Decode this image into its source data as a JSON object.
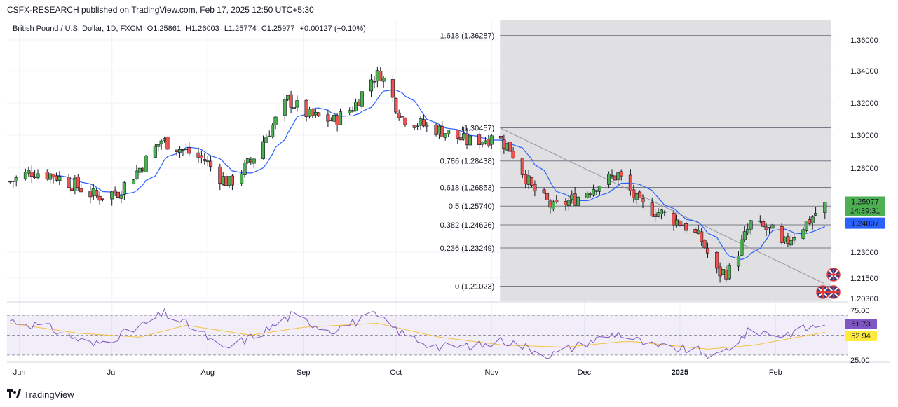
{
  "header": {
    "publisher": "CSFX-RESEARCH published on TradingView.com, Feb 17, 2025 12:50 UTC+5:30"
  },
  "legend": {
    "symbol": "British Pound / U.S. Dollar, 1D, FXCM",
    "open": "O1.25861",
    "high": "H1.26003",
    "low": "L1.25774",
    "close": "C1.25977",
    "change": "+0.00127 (+0.10%)"
  },
  "footer": {
    "brand": "TradingView",
    "logo": "tradingview-logo-icon"
  },
  "colors": {
    "up": "#4caf50",
    "down": "#ef5350",
    "ma": "#2962ff",
    "rsi": "#7e57c2",
    "rsi_ma": "#f5c242",
    "price_badge": "#4caf50",
    "ma_badge": "#2962ff",
    "rsi_badge": "#7e57c2",
    "rsi_ma_badge": "#ffeb3b",
    "shade": "#e0e0e3"
  },
  "chart_data": [
    {
      "type": "candlestick",
      "symbol": "GBPUSD",
      "timeframe": "1D",
      "y_ticks": [
        1.36,
        1.34,
        1.32,
        1.3,
        1.28,
        1.23,
        1.215,
        1.203
      ],
      "y_tick_labels": [
        "1.36000",
        "1.34000",
        "1.32000",
        "1.30000",
        "1.28000",
        "1.23000",
        "1.21500",
        "1.20300"
      ],
      "ylim": [
        1.201,
        1.372
      ],
      "x_ticks": [
        "Jun",
        "Jul",
        "Aug",
        "Sep",
        "Oct",
        "Nov",
        "Dec",
        "2025",
        "Feb"
      ],
      "x_tick_dates": [
        "2024-06-01",
        "2024-07-01",
        "2024-08-01",
        "2024-09-01",
        "2024-10-01",
        "2024-11-01",
        "2024-12-01",
        "2025-01-01",
        "2025-02-01"
      ],
      "price_labels": [
        {
          "value": 1.25977,
          "text": "1.25977",
          "countdown": "14:39:31",
          "color": "#4caf50"
        },
        {
          "value": 1.24807,
          "text": "1.24807",
          "color": "#2962ff"
        }
      ],
      "fibonacci": {
        "start_date": "2024-11-01",
        "end_date": "2025-02-14",
        "levels": [
          {
            "ratio": "1.618",
            "price": 1.36287,
            "label": "1.618 (1.36287)"
          },
          {
            "ratio": "1",
            "price": 1.30457,
            "label": "(1.30457)"
          },
          {
            "ratio": "0.786",
            "price": 1.28438,
            "label": "0.786 (1.28438)"
          },
          {
            "ratio": "0.618",
            "price": 1.26853,
            "label": "0.618 (1.26853)"
          },
          {
            "ratio": "0.5",
            "price": 1.2574,
            "label": "0.5 (1.25740)"
          },
          {
            "ratio": "0.382",
            "price": 1.24626,
            "label": "0.382 (1.24626)"
          },
          {
            "ratio": "0.236",
            "price": 1.23249,
            "label": "0.236 (1.23249)"
          },
          {
            "ratio": "0",
            "price": 1.21023,
            "label": "0 (1.21023)"
          }
        ]
      },
      "trendline": {
        "from": [
          "2024-11-01",
          1.30457
        ],
        "to": [
          "2025-02-12",
          1.212
        ]
      },
      "current_price_line": 1.25977,
      "close_anchors": [
        [
          "2024-05-29",
          1.272
        ],
        [
          "2024-06-05",
          1.278
        ],
        [
          "2024-06-12",
          1.276
        ],
        [
          "2024-06-19",
          1.27
        ],
        [
          "2024-06-26",
          1.263
        ],
        [
          "2024-07-03",
          1.266
        ],
        [
          "2024-07-10",
          1.28
        ],
        [
          "2024-07-17",
          1.297
        ],
        [
          "2024-07-24",
          1.291
        ],
        [
          "2024-07-31",
          1.285
        ],
        [
          "2024-08-05",
          1.275
        ],
        [
          "2024-08-08",
          1.271
        ],
        [
          "2024-08-15",
          1.284
        ],
        [
          "2024-08-22",
          1.306
        ],
        [
          "2024-08-27",
          1.322
        ],
        [
          "2024-09-03",
          1.312
        ],
        [
          "2024-09-11",
          1.309
        ],
        [
          "2024-09-17",
          1.317
        ],
        [
          "2024-09-23",
          1.335
        ],
        [
          "2024-09-26",
          1.338
        ],
        [
          "2024-10-03",
          1.311
        ],
        [
          "2024-10-10",
          1.306
        ],
        [
          "2024-10-17",
          1.302
        ],
        [
          "2024-10-24",
          1.296
        ],
        [
          "2024-10-31",
          1.298
        ],
        [
          "2024-11-01",
          1.302
        ],
        [
          "2024-11-07",
          1.292
        ],
        [
          "2024-11-14",
          1.268
        ],
        [
          "2024-11-21",
          1.256
        ],
        [
          "2024-11-28",
          1.262
        ],
        [
          "2024-12-05",
          1.27
        ],
        [
          "2024-12-12",
          1.276
        ],
        [
          "2024-12-19",
          1.258
        ],
        [
          "2024-12-26",
          1.253
        ],
        [
          "2025-01-02",
          1.247
        ],
        [
          "2025-01-08",
          1.237
        ],
        [
          "2025-01-13",
          1.218
        ],
        [
          "2025-01-17",
          1.219
        ],
        [
          "2025-01-24",
          1.247
        ],
        [
          "2025-01-31",
          1.242
        ],
        [
          "2025-02-03",
          1.233
        ],
        [
          "2025-02-07",
          1.241
        ],
        [
          "2025-02-12",
          1.249
        ],
        [
          "2025-02-17",
          1.25977
        ]
      ],
      "ma_period": 10
    },
    {
      "type": "line",
      "name": "RSI",
      "y_ticks": [
        75,
        25
      ],
      "y_tick_labels": [
        "75.00",
        "25.00"
      ],
      "ylim": [
        20,
        80
      ],
      "band": [
        30,
        70
      ],
      "latest_labels": [
        {
          "value": 61.73,
          "text": "61.73",
          "color": "#7e57c2"
        },
        {
          "value": 52.94,
          "text": "52.94",
          "color": "#ffeb3b"
        }
      ],
      "rsi_anchors": [
        [
          "2024-05-29",
          65
        ],
        [
          "2024-06-10",
          58
        ],
        [
          "2024-06-25",
          40
        ],
        [
          "2024-07-08",
          55
        ],
        [
          "2024-07-18",
          72
        ],
        [
          "2024-07-29",
          55
        ],
        [
          "2024-08-06",
          35
        ],
        [
          "2024-08-20",
          55
        ],
        [
          "2024-08-28",
          70
        ],
        [
          "2024-09-10",
          55
        ],
        [
          "2024-09-24",
          70
        ],
        [
          "2024-10-04",
          50
        ],
        [
          "2024-10-15",
          38
        ],
        [
          "2024-10-30",
          40
        ],
        [
          "2024-11-05",
          45
        ],
        [
          "2024-11-20",
          30
        ],
        [
          "2024-12-04",
          45
        ],
        [
          "2024-12-12",
          52
        ],
        [
          "2024-12-24",
          38
        ],
        [
          "2025-01-06",
          35
        ],
        [
          "2025-01-13",
          28
        ],
        [
          "2025-01-24",
          55
        ],
        [
          "2025-02-03",
          50
        ],
        [
          "2025-02-10",
          56
        ],
        [
          "2025-02-17",
          61.73
        ]
      ],
      "rsi_ma_anchors": [
        [
          "2024-05-29",
          62
        ],
        [
          "2024-06-20",
          52
        ],
        [
          "2024-07-10",
          48
        ],
        [
          "2024-07-25",
          60
        ],
        [
          "2024-08-15",
          50
        ],
        [
          "2024-09-01",
          58
        ],
        [
          "2024-09-25",
          62
        ],
        [
          "2024-10-15",
          48
        ],
        [
          "2024-11-05",
          40
        ],
        [
          "2024-11-25",
          38
        ],
        [
          "2024-12-15",
          44
        ],
        [
          "2025-01-10",
          36
        ],
        [
          "2025-01-25",
          40
        ],
        [
          "2025-02-17",
          52.94
        ]
      ]
    }
  ]
}
